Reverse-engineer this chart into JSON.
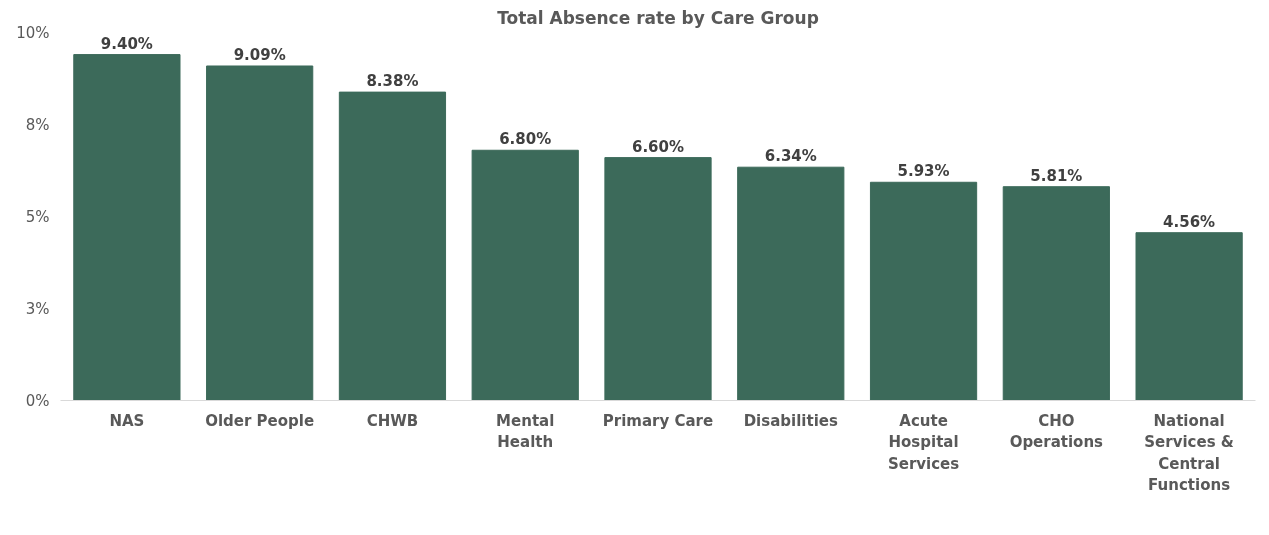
{
  "chart_data": {
    "type": "bar",
    "title": "Total Absence rate by Care Group",
    "categories": [
      "NAS",
      "Older People",
      "CHWB",
      "Mental Health",
      "Primary Care",
      "Disabilities",
      "Acute Hospital Services",
      "CHO Operations",
      "National Services & Central Functions"
    ],
    "values": [
      9.4,
      9.09,
      8.38,
      6.8,
      6.6,
      6.34,
      5.93,
      5.81,
      4.56
    ],
    "value_labels": [
      "9.40%",
      "9.09%",
      "8.38%",
      "6.80%",
      "6.60%",
      "6.34%",
      "5.93%",
      "5.81%",
      "4.56%"
    ],
    "color": "#3c6a5a",
    "ylim": [
      0,
      10
    ],
    "yticks": [
      {
        "value": 0,
        "label": "0%"
      },
      {
        "value": 2.5,
        "label": "3%"
      },
      {
        "value": 5,
        "label": "5%"
      },
      {
        "value": 7.5,
        "label": "8%"
      },
      {
        "value": 10,
        "label": "10%"
      }
    ],
    "grid": false
  }
}
